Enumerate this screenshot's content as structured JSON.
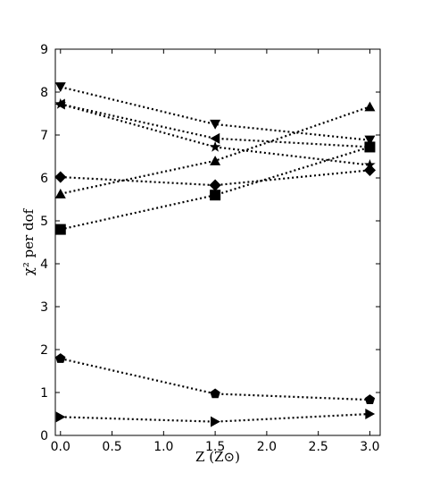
{
  "chart_data": {
    "type": "line",
    "xlabel": "Z (Z⊙)",
    "ylabel": "χ² per dof",
    "xlim": [
      -0.05,
      3.1
    ],
    "ylim": [
      0,
      9
    ],
    "xticks": [
      "0.0",
      "0.5",
      "1.0",
      "1.5",
      "2.0",
      "2.5",
      "3.0"
    ],
    "yticks": [
      "0",
      "1",
      "2",
      "3",
      "4",
      "5",
      "6",
      "7",
      "8",
      "9"
    ],
    "x": [
      0,
      1.5,
      3.0
    ],
    "line_style": "dotted",
    "color": "#000000",
    "grid": false,
    "series": [
      {
        "marker": "triangle-down",
        "values": [
          8.12,
          7.25,
          6.88
        ]
      },
      {
        "marker": "triangle-left",
        "values": [
          7.72,
          6.92,
          6.72
        ]
      },
      {
        "marker": "star",
        "values": [
          7.72,
          6.72,
          6.3
        ]
      },
      {
        "marker": "triangle-up",
        "values": [
          5.63,
          6.4,
          7.66
        ]
      },
      {
        "marker": "diamond",
        "values": [
          6.02,
          5.83,
          6.18
        ]
      },
      {
        "marker": "square",
        "values": [
          4.8,
          5.6,
          6.72
        ]
      },
      {
        "marker": "pentagon",
        "values": [
          1.79,
          0.97,
          0.83
        ]
      },
      {
        "marker": "triangle-right",
        "values": [
          0.43,
          0.32,
          0.5
        ]
      }
    ]
  }
}
